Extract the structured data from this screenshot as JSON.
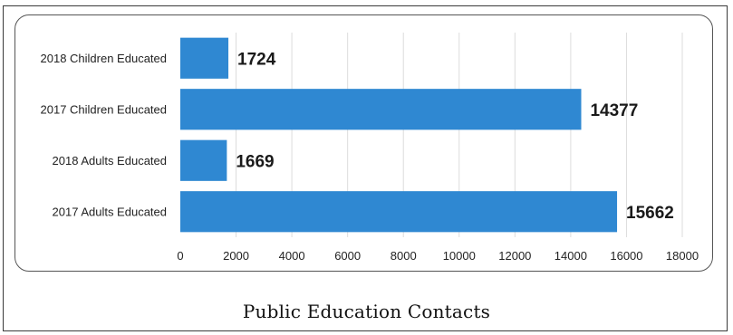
{
  "caption": "Public Education Contacts",
  "colors": {
    "bar": "#2f88d2",
    "grid": "#dcdcdc"
  },
  "chart_data": {
    "type": "bar",
    "orientation": "horizontal",
    "categories": [
      "2018 Children Educated",
      "2017 Children Educated",
      "2018 Adults Educated",
      "2017 Adults Educated"
    ],
    "values": [
      1724,
      14377,
      1669,
      15662
    ],
    "title": "Public Education Contacts",
    "xlabel": "",
    "ylabel": "",
    "xlim": [
      0,
      18000
    ],
    "xticks": [
      0,
      2000,
      4000,
      6000,
      8000,
      10000,
      12000,
      14000,
      16000,
      18000
    ],
    "grid": true,
    "legend": "none",
    "data_labels": true
  }
}
